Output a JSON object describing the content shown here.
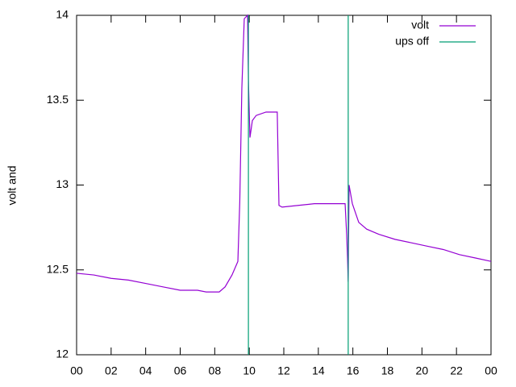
{
  "chart_data": {
    "type": "line",
    "ylabel": "volt and",
    "xlim": [
      0,
      24
    ],
    "xticks": [
      {
        "value": 0,
        "label": "00"
      },
      {
        "value": 2,
        "label": "02"
      },
      {
        "value": 4,
        "label": "04"
      },
      {
        "value": 6,
        "label": "06"
      },
      {
        "value": 8,
        "label": "08"
      },
      10,
      12,
      14,
      16,
      18,
      20,
      22,
      {
        "value": 24,
        "label": "00"
      }
    ],
    "ylim": [
      12,
      14
    ],
    "yticks": [
      12,
      12.5,
      13,
      13.5,
      14
    ],
    "legend": "top-right",
    "series": [
      {
        "name": "volt",
        "color": "#9400d3",
        "style": "line",
        "x": [
          0,
          1,
          2,
          3,
          4,
          5,
          6,
          7,
          7.5,
          8.26,
          8.6,
          9,
          9.34,
          9.45,
          9.57,
          9.71,
          9.9,
          9.95,
          10.04,
          10.18,
          10.4,
          10.97,
          11.62,
          11.72,
          11.9,
          12.84,
          13.77,
          15.55,
          15.64,
          15.69,
          15.73,
          15.78,
          15.97,
          16.34,
          16.8,
          17.5,
          18.44,
          19.37,
          20.3,
          21.24,
          22.17,
          23.1,
          24
        ],
        "values": [
          12.48,
          12.47,
          12.45,
          12.44,
          12.42,
          12.4,
          12.38,
          12.38,
          12.37,
          12.37,
          12.4,
          12.47,
          12.55,
          12.9,
          13.57,
          13.98,
          14,
          13.62,
          13.28,
          13.38,
          13.41,
          13.43,
          13.43,
          12.88,
          12.87,
          12.88,
          12.89,
          12.89,
          12.71,
          12.57,
          12.43,
          13.0,
          12.89,
          12.78,
          12.74,
          12.71,
          12.68,
          12.66,
          12.64,
          12.62,
          12.59,
          12.57,
          12.55
        ]
      },
      {
        "name": "ups off",
        "color": "#009e73",
        "style": "impulses",
        "x": [
          9.95,
          15.73
        ],
        "values": [
          14,
          14
        ]
      }
    ]
  }
}
